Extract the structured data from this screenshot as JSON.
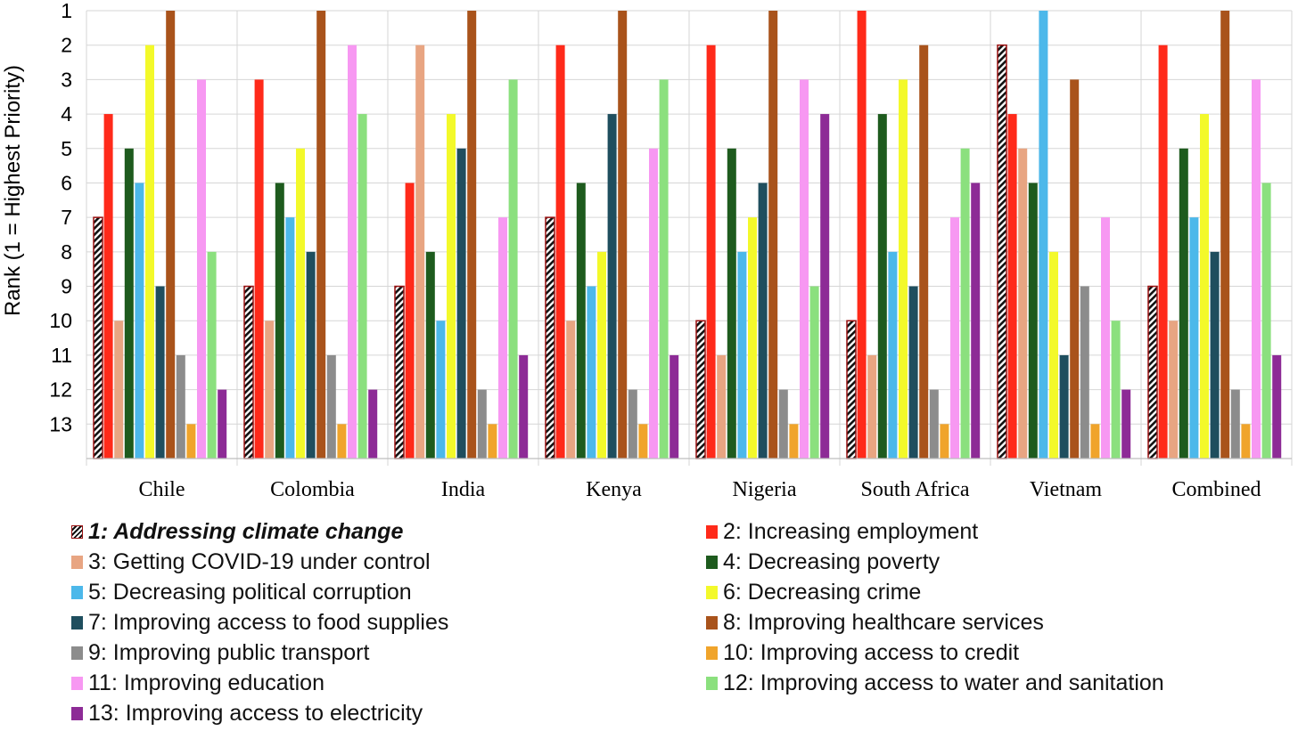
{
  "chart_data": {
    "type": "bar",
    "ylabel": "Rank (1 = Highest Priority)",
    "y_axis_inverted": true,
    "ylim": [
      1,
      14
    ],
    "yticks": [
      "1",
      "2",
      "3",
      "4",
      "5",
      "6",
      "7",
      "8",
      "9",
      "10",
      "11",
      "12",
      "13"
    ],
    "grid": true,
    "legend_placement": "bottom",
    "categories": [
      "Chile",
      "Colombia",
      "India",
      "Kenya",
      "Nigeria",
      "South Africa",
      "Vietnam",
      "Combined"
    ],
    "series": [
      {
        "name": "1: Addressing climate change",
        "color": "#ffffff",
        "pattern": "hatch",
        "values": [
          7,
          9,
          9,
          7,
          10,
          10,
          2,
          9
        ]
      },
      {
        "name": "2: Increasing employment",
        "color": "#ff2a1a",
        "values": [
          4,
          3,
          6,
          2,
          2,
          1,
          4,
          2
        ]
      },
      {
        "name": "3: Getting COVID-19 under control",
        "color": "#e8a582",
        "values": [
          10,
          10,
          2,
          10,
          11,
          11,
          5,
          10
        ]
      },
      {
        "name": "4: Decreasing poverty",
        "color": "#1e5b1e",
        "values": [
          5,
          6,
          8,
          6,
          5,
          4,
          6,
          5
        ]
      },
      {
        "name": "5: Decreasing political corruption",
        "color": "#4cb8ea",
        "values": [
          6,
          7,
          10,
          9,
          8,
          8,
          1,
          7
        ]
      },
      {
        "name": "6: Decreasing crime",
        "color": "#f3f92a",
        "values": [
          2,
          5,
          4,
          8,
          7,
          3,
          8,
          4
        ]
      },
      {
        "name": "7: Improving access to food supplies",
        "color": "#1f4e5e",
        "values": [
          9,
          8,
          5,
          4,
          6,
          9,
          11,
          8
        ]
      },
      {
        "name": "8: Improving healthcare services",
        "color": "#a9531b",
        "values": [
          1,
          1,
          1,
          1,
          1,
          2,
          3,
          1
        ]
      },
      {
        "name": "9: Improving public transport",
        "color": "#8c8c8c",
        "values": [
          11,
          11,
          12,
          12,
          12,
          12,
          9,
          12
        ]
      },
      {
        "name": "10: Improving access to credit",
        "color": "#f0a42b",
        "values": [
          13,
          13,
          13,
          13,
          13,
          13,
          13,
          13
        ]
      },
      {
        "name": "11: Improving education",
        "color": "#f798f2",
        "values": [
          3,
          2,
          7,
          5,
          3,
          7,
          7,
          3
        ]
      },
      {
        "name": "12: Improving access to water and sanitation",
        "color": "#8be07e",
        "values": [
          8,
          4,
          3,
          3,
          9,
          5,
          10,
          6
        ]
      },
      {
        "name": "13: Improving access to electricity",
        "color": "#8d2b96",
        "values": [
          12,
          12,
          11,
          11,
          4,
          6,
          12,
          11
        ]
      }
    ]
  }
}
